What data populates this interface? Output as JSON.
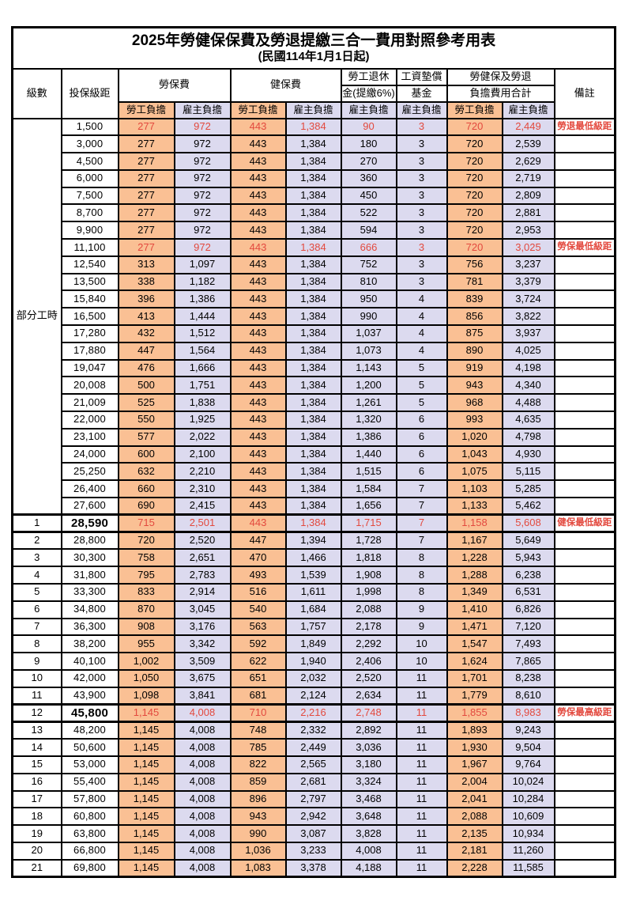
{
  "title": "2025年勞健保保費及勞退提繳三合一費用對照參考用表",
  "subtitle": "(民國114年1月1日起)",
  "colors": {
    "employee_column_bg": "#fac094",
    "employer_column_bg": "#dcdaef",
    "highlight_text": "#e3493e",
    "border": "#000000"
  },
  "header": {
    "level": "級數",
    "bracket": "投保級距",
    "labor_insurance": "勞保費",
    "health_insurance": "健保費",
    "pension_line1": "勞工退休",
    "pension_line2": "金(提繳6%)",
    "wage_fund_line1": "工資墊償",
    "wage_fund_line2": "基金",
    "total_line1": "勞健保及勞退",
    "total_line2": "負擔費用合計",
    "employee": "勞工負擔",
    "employer": "雇主負擔",
    "remark": "備註"
  },
  "part_time": {
    "label": "部分工時",
    "row_count": 23
  },
  "rows": [
    {
      "bracket": "1,500",
      "values": [
        "277",
        "972",
        "443",
        "1,384",
        "90",
        "3",
        "720",
        "2,449"
      ],
      "remark": "勞退最低級距",
      "red": true
    },
    {
      "bracket": "3,000",
      "values": [
        "277",
        "972",
        "443",
        "1,384",
        "180",
        "3",
        "720",
        "2,539"
      ]
    },
    {
      "bracket": "4,500",
      "values": [
        "277",
        "972",
        "443",
        "1,384",
        "270",
        "3",
        "720",
        "2,629"
      ]
    },
    {
      "bracket": "6,000",
      "values": [
        "277",
        "972",
        "443",
        "1,384",
        "360",
        "3",
        "720",
        "2,719"
      ]
    },
    {
      "bracket": "7,500",
      "values": [
        "277",
        "972",
        "443",
        "1,384",
        "450",
        "3",
        "720",
        "2,809"
      ]
    },
    {
      "bracket": "8,700",
      "values": [
        "277",
        "972",
        "443",
        "1,384",
        "522",
        "3",
        "720",
        "2,881"
      ]
    },
    {
      "bracket": "9,900",
      "values": [
        "277",
        "972",
        "443",
        "1,384",
        "594",
        "3",
        "720",
        "2,953"
      ]
    },
    {
      "bracket": "11,100",
      "values": [
        "277",
        "972",
        "443",
        "1,384",
        "666",
        "3",
        "720",
        "3,025"
      ],
      "remark": "勞保最低級距",
      "red": true
    },
    {
      "bracket": "12,540",
      "values": [
        "313",
        "1,097",
        "443",
        "1,384",
        "752",
        "3",
        "756",
        "3,237"
      ]
    },
    {
      "bracket": "13,500",
      "values": [
        "338",
        "1,182",
        "443",
        "1,384",
        "810",
        "3",
        "781",
        "3,379"
      ]
    },
    {
      "bracket": "15,840",
      "values": [
        "396",
        "1,386",
        "443",
        "1,384",
        "950",
        "4",
        "839",
        "3,724"
      ]
    },
    {
      "bracket": "16,500",
      "values": [
        "413",
        "1,444",
        "443",
        "1,384",
        "990",
        "4",
        "856",
        "3,822"
      ]
    },
    {
      "bracket": "17,280",
      "values": [
        "432",
        "1,512",
        "443",
        "1,384",
        "1,037",
        "4",
        "875",
        "3,937"
      ]
    },
    {
      "bracket": "17,880",
      "values": [
        "447",
        "1,564",
        "443",
        "1,384",
        "1,073",
        "4",
        "890",
        "4,025"
      ]
    },
    {
      "bracket": "19,047",
      "values": [
        "476",
        "1,666",
        "443",
        "1,384",
        "1,143",
        "5",
        "919",
        "4,198"
      ]
    },
    {
      "bracket": "20,008",
      "values": [
        "500",
        "1,751",
        "443",
        "1,384",
        "1,200",
        "5",
        "943",
        "4,340"
      ]
    },
    {
      "bracket": "21,009",
      "values": [
        "525",
        "1,838",
        "443",
        "1,384",
        "1,261",
        "5",
        "968",
        "4,488"
      ]
    },
    {
      "bracket": "22,000",
      "values": [
        "550",
        "1,925",
        "443",
        "1,384",
        "1,320",
        "6",
        "993",
        "4,635"
      ]
    },
    {
      "bracket": "23,100",
      "values": [
        "577",
        "2,022",
        "443",
        "1,384",
        "1,386",
        "6",
        "1,020",
        "4,798"
      ]
    },
    {
      "bracket": "24,000",
      "values": [
        "600",
        "2,100",
        "443",
        "1,384",
        "1,440",
        "6",
        "1,043",
        "4,930"
      ]
    },
    {
      "bracket": "25,250",
      "values": [
        "632",
        "2,210",
        "443",
        "1,384",
        "1,515",
        "6",
        "1,075",
        "5,115"
      ]
    },
    {
      "bracket": "26,400",
      "values": [
        "660",
        "2,310",
        "443",
        "1,384",
        "1,584",
        "7",
        "1,103",
        "5,285"
      ]
    },
    {
      "bracket": "27,600",
      "values": [
        "690",
        "2,415",
        "443",
        "1,384",
        "1,656",
        "7",
        "1,133",
        "5,462"
      ]
    },
    {
      "level": "1",
      "bracket": "28,590",
      "values": [
        "715",
        "2,501",
        "443",
        "1,384",
        "1,715",
        "7",
        "1,158",
        "5,608"
      ],
      "remark": "健保最低級距",
      "red": true,
      "thick": true
    },
    {
      "level": "2",
      "bracket": "28,800",
      "values": [
        "720",
        "2,520",
        "447",
        "1,394",
        "1,728",
        "7",
        "1,167",
        "5,649"
      ]
    },
    {
      "level": "3",
      "bracket": "30,300",
      "values": [
        "758",
        "2,651",
        "470",
        "1,466",
        "1,818",
        "8",
        "1,228",
        "5,943"
      ]
    },
    {
      "level": "4",
      "bracket": "31,800",
      "values": [
        "795",
        "2,783",
        "493",
        "1,539",
        "1,908",
        "8",
        "1,288",
        "6,238"
      ]
    },
    {
      "level": "5",
      "bracket": "33,300",
      "values": [
        "833",
        "2,914",
        "516",
        "1,611",
        "1,998",
        "8",
        "1,349",
        "6,531"
      ]
    },
    {
      "level": "6",
      "bracket": "34,800",
      "values": [
        "870",
        "3,045",
        "540",
        "1,684",
        "2,088",
        "9",
        "1,410",
        "6,826"
      ]
    },
    {
      "level": "7",
      "bracket": "36,300",
      "values": [
        "908",
        "3,176",
        "563",
        "1,757",
        "2,178",
        "9",
        "1,471",
        "7,120"
      ]
    },
    {
      "level": "8",
      "bracket": "38,200",
      "values": [
        "955",
        "3,342",
        "592",
        "1,849",
        "2,292",
        "10",
        "1,547",
        "7,493"
      ]
    },
    {
      "level": "9",
      "bracket": "40,100",
      "values": [
        "1,002",
        "3,509",
        "622",
        "1,940",
        "2,406",
        "10",
        "1,624",
        "7,865"
      ]
    },
    {
      "level": "10",
      "bracket": "42,000",
      "values": [
        "1,050",
        "3,675",
        "651",
        "2,032",
        "2,520",
        "11",
        "1,701",
        "8,238"
      ]
    },
    {
      "level": "11",
      "bracket": "43,900",
      "values": [
        "1,098",
        "3,841",
        "681",
        "2,124",
        "2,634",
        "11",
        "1,779",
        "8,610"
      ]
    },
    {
      "level": "12",
      "bracket": "45,800",
      "values": [
        "1,145",
        "4,008",
        "710",
        "2,216",
        "2,748",
        "11",
        "1,855",
        "8,983"
      ],
      "remark": "勞保最高級距",
      "red": true,
      "thick": true
    },
    {
      "level": "13",
      "bracket": "48,200",
      "values": [
        "1,145",
        "4,008",
        "748",
        "2,332",
        "2,892",
        "11",
        "1,893",
        "9,243"
      ]
    },
    {
      "level": "14",
      "bracket": "50,600",
      "values": [
        "1,145",
        "4,008",
        "785",
        "2,449",
        "3,036",
        "11",
        "1,930",
        "9,504"
      ]
    },
    {
      "level": "15",
      "bracket": "53,000",
      "values": [
        "1,145",
        "4,008",
        "822",
        "2,565",
        "3,180",
        "11",
        "1,967",
        "9,764"
      ]
    },
    {
      "level": "16",
      "bracket": "55,400",
      "values": [
        "1,145",
        "4,008",
        "859",
        "2,681",
        "3,324",
        "11",
        "2,004",
        "10,024"
      ]
    },
    {
      "level": "17",
      "bracket": "57,800",
      "values": [
        "1,145",
        "4,008",
        "896",
        "2,797",
        "3,468",
        "11",
        "2,041",
        "10,284"
      ]
    },
    {
      "level": "18",
      "bracket": "60,800",
      "values": [
        "1,145",
        "4,008",
        "943",
        "2,942",
        "3,648",
        "11",
        "2,088",
        "10,609"
      ]
    },
    {
      "level": "19",
      "bracket": "63,800",
      "values": [
        "1,145",
        "4,008",
        "990",
        "3,087",
        "3,828",
        "11",
        "2,135",
        "10,934"
      ]
    },
    {
      "level": "20",
      "bracket": "66,800",
      "values": [
        "1,145",
        "4,008",
        "1,036",
        "3,233",
        "4,008",
        "11",
        "2,181",
        "11,260"
      ]
    },
    {
      "level": "21",
      "bracket": "69,800",
      "values": [
        "1,145",
        "4,008",
        "1,083",
        "3,378",
        "4,188",
        "11",
        "2,228",
        "11,585"
      ]
    }
  ]
}
